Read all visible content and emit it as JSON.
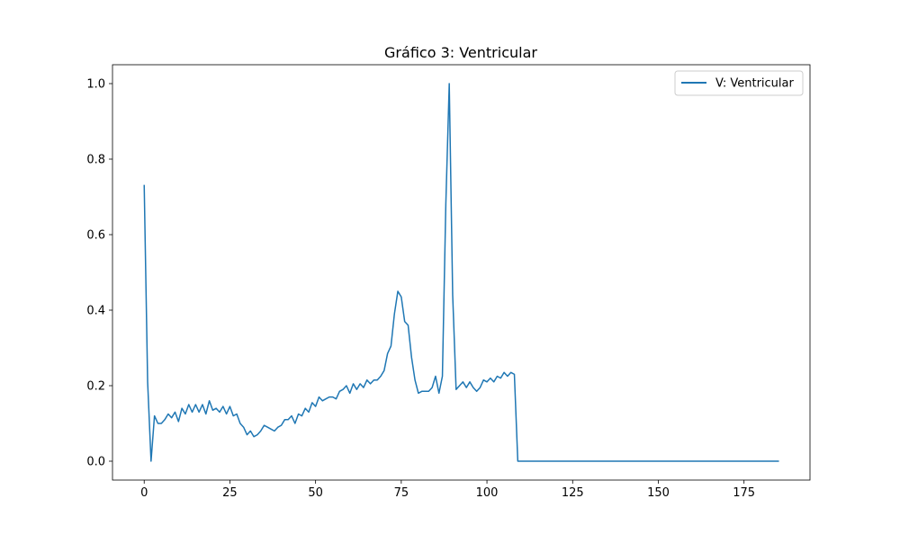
{
  "chart_data": {
    "type": "line",
    "title": "Gráfico 3: Ventricular",
    "xlabel": "",
    "ylabel": "",
    "xlim": [
      -9.25,
      194.25
    ],
    "ylim": [
      -0.05,
      1.05
    ],
    "xticks": [
      0,
      25,
      50,
      75,
      100,
      125,
      150,
      175
    ],
    "yticks": [
      0.0,
      0.2,
      0.4,
      0.6,
      0.8,
      1.0
    ],
    "xtick_labels": [
      "0",
      "25",
      "50",
      "75",
      "100",
      "125",
      "150",
      "175"
    ],
    "ytick_labels": [
      "0.0",
      "0.2",
      "0.4",
      "0.6",
      "0.8",
      "1.0"
    ],
    "grid": false,
    "legend_position": "upper right",
    "series": [
      {
        "name": "V: Ventricular",
        "color": "#1f77b4",
        "x": [
          0,
          1,
          2,
          3,
          4,
          5,
          6,
          7,
          8,
          9,
          10,
          11,
          12,
          13,
          14,
          15,
          16,
          17,
          18,
          19,
          20,
          21,
          22,
          23,
          24,
          25,
          26,
          27,
          28,
          29,
          30,
          31,
          32,
          33,
          34,
          35,
          36,
          37,
          38,
          39,
          40,
          41,
          42,
          43,
          44,
          45,
          46,
          47,
          48,
          49,
          50,
          51,
          52,
          53,
          54,
          55,
          56,
          57,
          58,
          59,
          60,
          61,
          62,
          63,
          64,
          65,
          66,
          67,
          68,
          69,
          70,
          71,
          72,
          73,
          74,
          75,
          76,
          77,
          78,
          79,
          80,
          81,
          82,
          83,
          84,
          85,
          86,
          87,
          88,
          89,
          90,
          91,
          92,
          93,
          94,
          95,
          96,
          97,
          98,
          99,
          100,
          101,
          102,
          103,
          104,
          105,
          106,
          107,
          108,
          109,
          185
        ],
        "values": [
          0.73,
          0.21,
          0.0,
          0.12,
          0.1,
          0.1,
          0.11,
          0.125,
          0.115,
          0.13,
          0.105,
          0.14,
          0.125,
          0.15,
          0.13,
          0.15,
          0.13,
          0.15,
          0.125,
          0.16,
          0.135,
          0.14,
          0.13,
          0.145,
          0.125,
          0.145,
          0.12,
          0.125,
          0.1,
          0.09,
          0.07,
          0.08,
          0.065,
          0.07,
          0.08,
          0.095,
          0.09,
          0.085,
          0.08,
          0.09,
          0.095,
          0.11,
          0.11,
          0.12,
          0.1,
          0.125,
          0.12,
          0.14,
          0.13,
          0.155,
          0.145,
          0.17,
          0.16,
          0.165,
          0.17,
          0.17,
          0.165,
          0.185,
          0.19,
          0.2,
          0.18,
          0.205,
          0.19,
          0.205,
          0.195,
          0.215,
          0.205,
          0.215,
          0.215,
          0.225,
          0.24,
          0.285,
          0.305,
          0.39,
          0.45,
          0.435,
          0.37,
          0.36,
          0.275,
          0.215,
          0.18,
          0.185,
          0.185,
          0.185,
          0.195,
          0.225,
          0.18,
          0.225,
          0.68,
          1.0,
          0.44,
          0.19,
          0.2,
          0.21,
          0.195,
          0.21,
          0.195,
          0.185,
          0.195,
          0.215,
          0.21,
          0.22,
          0.21,
          0.225,
          0.22,
          0.235,
          0.225,
          0.235,
          0.23,
          0.0,
          0.0
        ]
      }
    ]
  }
}
